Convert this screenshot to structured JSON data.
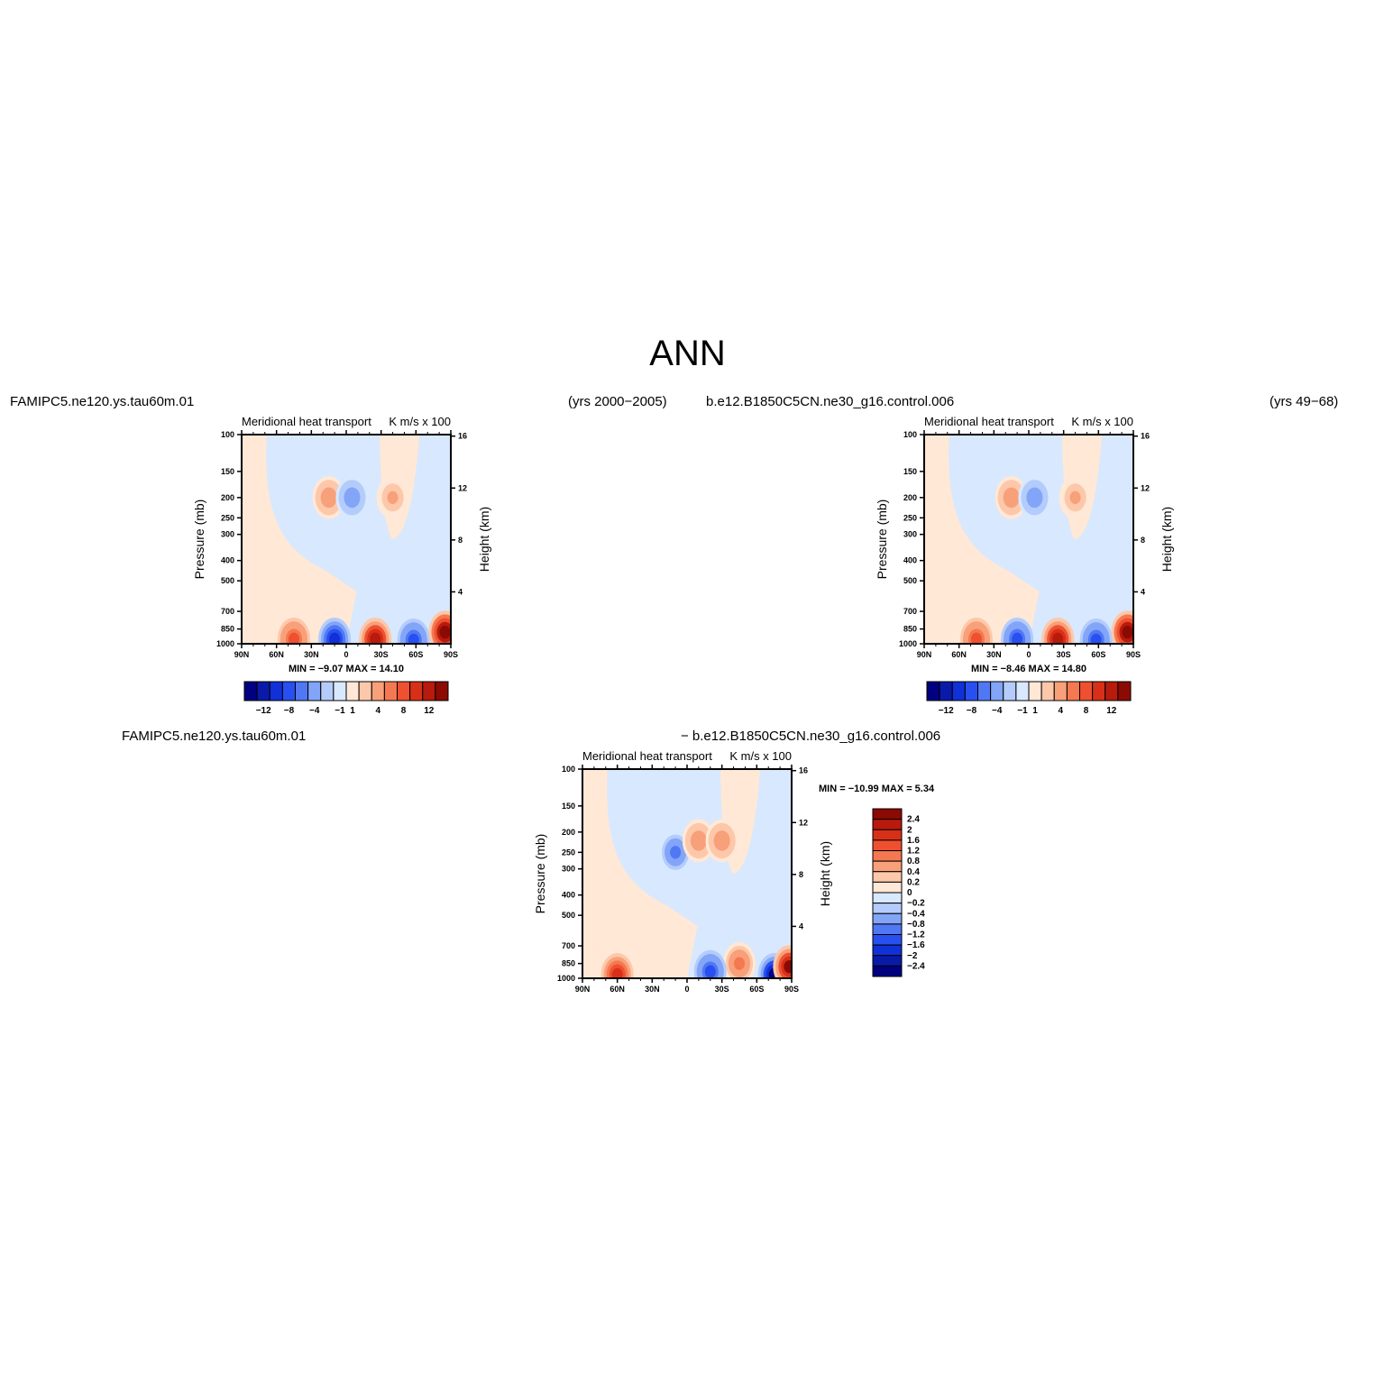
{
  "page_title": "ANN",
  "top_labels": {
    "left_case": "FAMIPC5.ne120.ys.tau60m.01",
    "left_years": "(yrs 2000−2005)",
    "right_case": "b.e12.B1850C5CN.ne30_g16.control.006",
    "right_years": "(yrs 49−68)",
    "diff_case_a": "FAMIPC5.ne120.ys.tau60m.01",
    "diff_case_b": "− b.e12.B1850C5CN.ne30_g16.control.006"
  },
  "colors": {
    "neg": [
      "#000080",
      "#0a1aa8",
      "#1030d8",
      "#2850f0",
      "#5078f5",
      "#82a5f8",
      "#b4ccfb",
      "#d8e8fe"
    ],
    "pos": [
      "#ffe8d6",
      "#fdc8aa",
      "#f8a07a",
      "#f47850",
      "#ee5030",
      "#d83018",
      "#b81a0c",
      "#8c0a04"
    ]
  },
  "chart_data": [
    {
      "type": "contour",
      "panel": "model",
      "title_left": "Meridional heat transport",
      "title_right": "K m/s  x  100",
      "ylabel_left": "Pressure (mb)",
      "ylabel_right": "Height (km)",
      "x_ticks": [
        "90N",
        "60N",
        "30N",
        "0",
        "30S",
        "60S",
        "90S"
      ],
      "y_ticks": [
        "100",
        "150",
        "200",
        "250",
        "300",
        "400",
        "500",
        "700",
        "850",
        "1000"
      ],
      "height_ticks": [
        "16",
        "12",
        "8",
        "4"
      ],
      "min_max": "MIN =   −9.07   MAX =   14.10",
      "colorbar_labels": [
        "−12",
        "−8",
        "−4",
        "−1",
        "1",
        "4",
        "8",
        "12"
      ],
      "features": [
        {
          "lat": -25,
          "lev": 950,
          "value": 12
        },
        {
          "lat": 45,
          "lev": 950,
          "value": 8
        },
        {
          "lat": 10,
          "lev": 950,
          "value": -9
        },
        {
          "lat": -58,
          "lev": 960,
          "value": -8
        },
        {
          "lat": -85,
          "lev": 880,
          "value": 14
        },
        {
          "lat": 15,
          "lev": 200,
          "value": 4
        },
        {
          "lat": -5,
          "lev": 200,
          "value": -4
        },
        {
          "lat": -40,
          "lev": 200,
          "value": 3
        }
      ]
    },
    {
      "type": "contour",
      "panel": "control",
      "title_left": "Meridional heat transport",
      "title_right": "K m/s  x  100",
      "ylabel_left": "Pressure (mb)",
      "ylabel_right": "Height (km)",
      "x_ticks": [
        "90N",
        "60N",
        "30N",
        "0",
        "30S",
        "60S",
        "90S"
      ],
      "y_ticks": [
        "100",
        "150",
        "200",
        "250",
        "300",
        "400",
        "500",
        "700",
        "850",
        "1000"
      ],
      "height_ticks": [
        "16",
        "12",
        "8",
        "4"
      ],
      "min_max": "MIN =   −8.46   MAX =   14.80",
      "colorbar_labels": [
        "−12",
        "−8",
        "−4",
        "−1",
        "1",
        "4",
        "8",
        "12"
      ],
      "features": [
        {
          "lat": -25,
          "lev": 950,
          "value": 12
        },
        {
          "lat": 45,
          "lev": 950,
          "value": 8
        },
        {
          "lat": 10,
          "lev": 950,
          "value": -8
        },
        {
          "lat": -58,
          "lev": 960,
          "value": -8
        },
        {
          "lat": -85,
          "lev": 880,
          "value": 14
        },
        {
          "lat": 15,
          "lev": 200,
          "value": 4
        },
        {
          "lat": -5,
          "lev": 200,
          "value": -4
        },
        {
          "lat": -40,
          "lev": 200,
          "value": 3
        }
      ]
    },
    {
      "type": "contour",
      "panel": "difference",
      "title_left": "Meridional heat transport",
      "title_right": "K m/s  x  100",
      "ylabel_left": "Pressure (mb)",
      "ylabel_right": "Height (km)",
      "x_ticks": [
        "90N",
        "60N",
        "30N",
        "0",
        "30S",
        "60S",
        "90S"
      ],
      "y_ticks": [
        "100",
        "150",
        "200",
        "250",
        "300",
        "400",
        "500",
        "700",
        "850",
        "1000"
      ],
      "height_ticks": [
        "16",
        "12",
        "8",
        "4"
      ],
      "min_max": "MIN =  −10.99   MAX =    5.34",
      "colorbar_labels": [
        "2.4",
        "2",
        "1.6",
        "1.2",
        "0.8",
        "0.4",
        "0.2",
        "0",
        "−0.2",
        "−0.4",
        "−0.8",
        "−1.2",
        "−1.6",
        "−2",
        "−2.4"
      ],
      "features": [
        {
          "lat": 60,
          "lev": 960,
          "value": 2
        },
        {
          "lat": -75,
          "lev": 960,
          "value": -2.4
        },
        {
          "lat": -88,
          "lev": 880,
          "value": 2.4
        },
        {
          "lat": 10,
          "lev": 250,
          "value": -1.2
        },
        {
          "lat": -10,
          "lev": 220,
          "value": 0.8
        },
        {
          "lat": -30,
          "lev": 220,
          "value": 0.8
        },
        {
          "lat": -45,
          "lev": 850,
          "value": 1.2
        },
        {
          "lat": -20,
          "lev": 930,
          "value": -1.6
        }
      ]
    }
  ]
}
